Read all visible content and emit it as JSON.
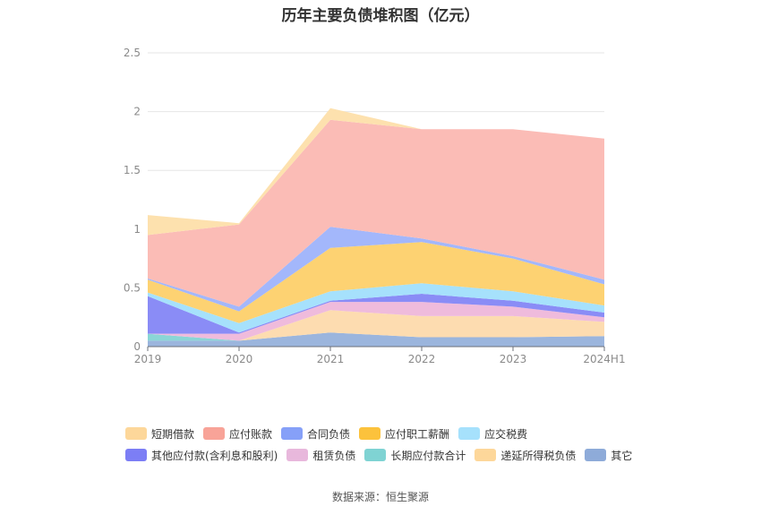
{
  "chart_data": {
    "type": "area",
    "stacked": true,
    "title": "历年主要负债堆积图（亿元）",
    "source": "数据来源：恒生聚源",
    "categories": [
      "2019",
      "2020",
      "2021",
      "2022",
      "2023",
      "2024H1"
    ],
    "ylim": [
      0,
      2.5
    ],
    "yticks": [
      "0",
      "0.5",
      "1",
      "1.5",
      "2",
      "2.5"
    ],
    "grid": true,
    "legend_position": "bottom",
    "series": [
      {
        "name": "其它",
        "color": "#9bb5dd",
        "values": [
          0.05,
          0.05,
          0.12,
          0.08,
          0.08,
          0.09
        ]
      },
      {
        "name": "递延所得税负债",
        "color": "#fddcb0",
        "values": [
          0.0,
          0.0,
          0.19,
          0.18,
          0.18,
          0.12
        ]
      },
      {
        "name": "长期应付款合计",
        "color": "#8ad6d6",
        "values": [
          0.06,
          0.0,
          0.0,
          0.0,
          0.0,
          0.0
        ]
      },
      {
        "name": "租赁负债",
        "color": "#efbbdc",
        "values": [
          0.0,
          0.06,
          0.07,
          0.12,
          0.08,
          0.04
        ]
      },
      {
        "name": "其他应付款(含利息和股利)",
        "color": "#8a8cf6",
        "values": [
          0.32,
          0.01,
          0.01,
          0.07,
          0.05,
          0.04
        ]
      },
      {
        "name": "应交税费",
        "color": "#a6e1fc",
        "values": [
          0.03,
          0.08,
          0.08,
          0.09,
          0.08,
          0.06
        ]
      },
      {
        "name": "应付职工薪酬",
        "color": "#fdd272",
        "values": [
          0.11,
          0.1,
          0.37,
          0.35,
          0.28,
          0.18
        ]
      },
      {
        "name": "合同负债",
        "color": "#a3b7fb",
        "values": [
          0.01,
          0.04,
          0.18,
          0.03,
          0.02,
          0.04
        ]
      },
      {
        "name": "应付账款",
        "color": "#fbbcb6",
        "values": [
          0.37,
          0.7,
          0.91,
          0.93,
          1.08,
          1.2
        ]
      },
      {
        "name": "短期借款",
        "color": "#fde1ae",
        "values": [
          0.17,
          0.01,
          0.1,
          0.0,
          0.0,
          0.0
        ]
      }
    ],
    "legend_rows": [
      [
        {
          "name": "短期借款",
          "color": "#fdd79a"
        },
        {
          "name": "应付账款",
          "color": "#f8a398"
        },
        {
          "name": "合同负债",
          "color": "#86a0f8"
        },
        {
          "name": "应付职工薪酬",
          "color": "#fcc23c"
        },
        {
          "name": "应交税费",
          "color": "#a6e1fc"
        }
      ],
      [
        {
          "name": "其他应付款(含利息和股利)",
          "color": "#7c7ef5"
        },
        {
          "name": "租赁负债",
          "color": "#e8b8dc"
        },
        {
          "name": "长期应付款合计",
          "color": "#7fd3d3"
        },
        {
          "name": "递延所得税负债",
          "color": "#fdd79a"
        },
        {
          "name": "其它",
          "color": "#8eabd9"
        }
      ]
    ]
  }
}
